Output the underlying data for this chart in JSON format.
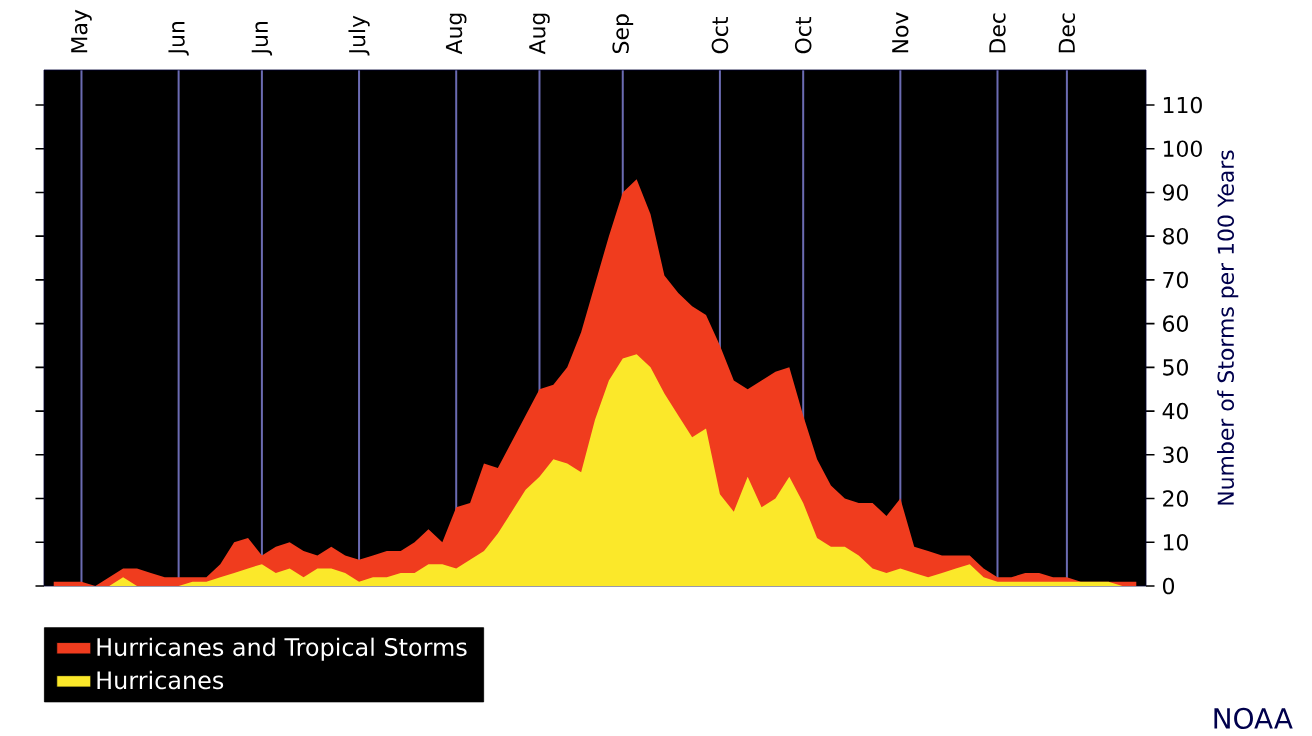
{
  "chart_data": {
    "type": "area",
    "ylabel": "Number of Storms per 100 Years",
    "ylim": [
      0,
      118
    ],
    "categories": [
      null,
      null,
      "May",
      null,
      null,
      null,
      null,
      null,
      null,
      "Jun",
      null,
      null,
      null,
      null,
      null,
      "Jun",
      null,
      null,
      null,
      null,
      null,
      null,
      "July",
      null,
      null,
      null,
      null,
      null,
      null,
      "Aug",
      null,
      null,
      null,
      null,
      null,
      "Aug",
      null,
      null,
      null,
      null,
      null,
      "Sep",
      null,
      null,
      null,
      null,
      null,
      null,
      "Oct",
      null,
      null,
      null,
      null,
      null,
      "Oct",
      null,
      null,
      null,
      null,
      null,
      null,
      "Nov",
      null,
      null,
      null,
      null,
      null,
      null,
      "Dec",
      null,
      null,
      null,
      null,
      "Dec",
      null,
      null,
      null,
      null,
      null
    ],
    "yticks": [
      0,
      10,
      20,
      30,
      40,
      50,
      60,
      70,
      80,
      90,
      100,
      110
    ],
    "series": [
      {
        "name": "Hurricanes and Tropical Storms",
        "color": "#f03c1e",
        "values": [
          1,
          1,
          1,
          0,
          2,
          4,
          4,
          3,
          2,
          2,
          2,
          2,
          5,
          10,
          11,
          7,
          9,
          10,
          8,
          7,
          9,
          7,
          6,
          7,
          8,
          8,
          10,
          13,
          10,
          18,
          19,
          28,
          27,
          33,
          39,
          45,
          46,
          50,
          58,
          69,
          80,
          90,
          93,
          85,
          71,
          67,
          64,
          62,
          55,
          47,
          45,
          47,
          49,
          50,
          39,
          29,
          23,
          20,
          19,
          19,
          16,
          20,
          9,
          8,
          7,
          7,
          7,
          4,
          2,
          2,
          3,
          3,
          2,
          2,
          1,
          1,
          1,
          1,
          1
        ]
      },
      {
        "name": "Hurricanes",
        "color": "#fbe82a",
        "values": [
          0,
          0,
          0,
          0,
          0,
          2,
          0,
          0,
          0,
          0,
          1,
          1,
          2,
          3,
          4,
          5,
          3,
          4,
          2,
          4,
          4,
          3,
          1,
          2,
          2,
          3,
          3,
          5,
          5,
          4,
          6,
          8,
          12,
          17,
          22,
          25,
          29,
          28,
          26,
          38,
          47,
          52,
          53,
          50,
          44,
          39,
          34,
          36,
          21,
          17,
          25,
          18,
          20,
          25,
          19,
          11,
          9,
          9,
          7,
          4,
          3,
          4,
          3,
          2,
          3,
          4,
          5,
          2,
          1,
          1,
          1,
          1,
          1,
          1,
          1,
          1,
          1,
          0,
          0
        ]
      }
    ],
    "grid": "x",
    "legend": "bottom left",
    "annotations": [
      "NOAA"
    ]
  }
}
